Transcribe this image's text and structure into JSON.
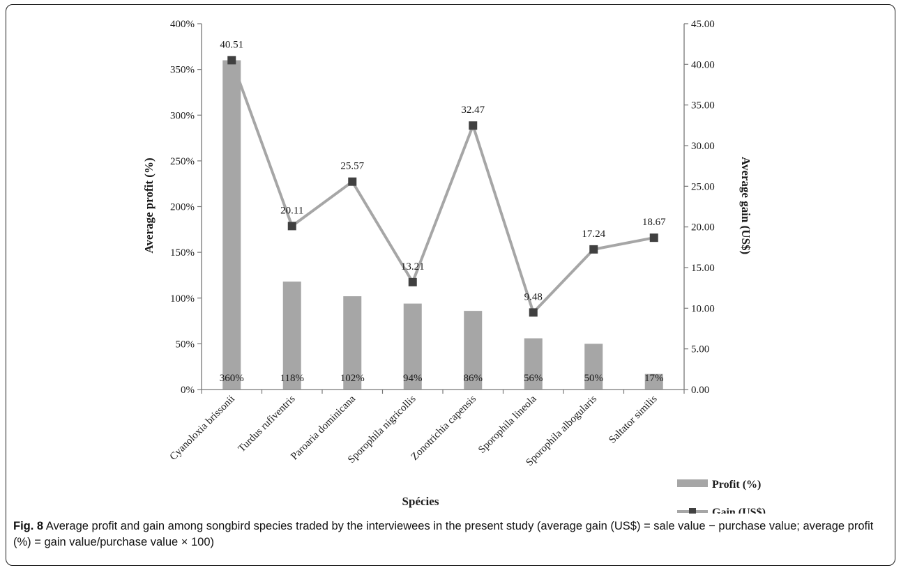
{
  "chart_data": {
    "type": "bar+line",
    "categories": [
      "Cyanoloxia brissonii",
      "Turdus rufiventris",
      "Paroaria dominicana",
      "Sporophila nigricollis",
      "Zonotrichia capensis",
      "Sporophila lineola",
      "Sporophila albogularis",
      "Saltator similis"
    ],
    "series": [
      {
        "name": "Profit (%)",
        "type": "bar",
        "axis": "left",
        "values": [
          360,
          118,
          102,
          94,
          86,
          56,
          50,
          17
        ],
        "labels": [
          "360%",
          "118%",
          "102%",
          "94%",
          "86%",
          "56%",
          "50%",
          "17%"
        ],
        "color": "#a6a6a6"
      },
      {
        "name": "Gain (US$)",
        "type": "line",
        "axis": "right",
        "values": [
          40.51,
          20.11,
          25.57,
          13.21,
          32.47,
          9.48,
          17.24,
          18.67
        ],
        "labels": [
          "40.51",
          "20.11",
          "25.57",
          "13.21",
          "32.47",
          "9.48",
          "17.24",
          "18.67"
        ],
        "line_color": "#a6a6a6",
        "marker_color": "#404040",
        "marker": "square"
      }
    ],
    "xlabel": "Spécies",
    "ylabel": "Average profit (%)",
    "y2label": "Average gain (US$)",
    "ylim": [
      0,
      400
    ],
    "y2lim": [
      0,
      45
    ],
    "yticks": [
      "0%",
      "50%",
      "100%",
      "150%",
      "200%",
      "250%",
      "300%",
      "350%",
      "400%"
    ],
    "y2ticks": [
      "0.00",
      "5.00",
      "10.00",
      "15.00",
      "20.00",
      "25.00",
      "30.00",
      "35.00",
      "40.00",
      "45.00"
    ],
    "grid": false,
    "legend": "bottom-right"
  },
  "caption": {
    "label": "Fig. 8",
    "text": "Average profit and gain among songbird species traded by the interviewees in the present study (average gain (US$) = sale value − purchase value; average profit (%) = gain value/purchase value × 100)"
  }
}
